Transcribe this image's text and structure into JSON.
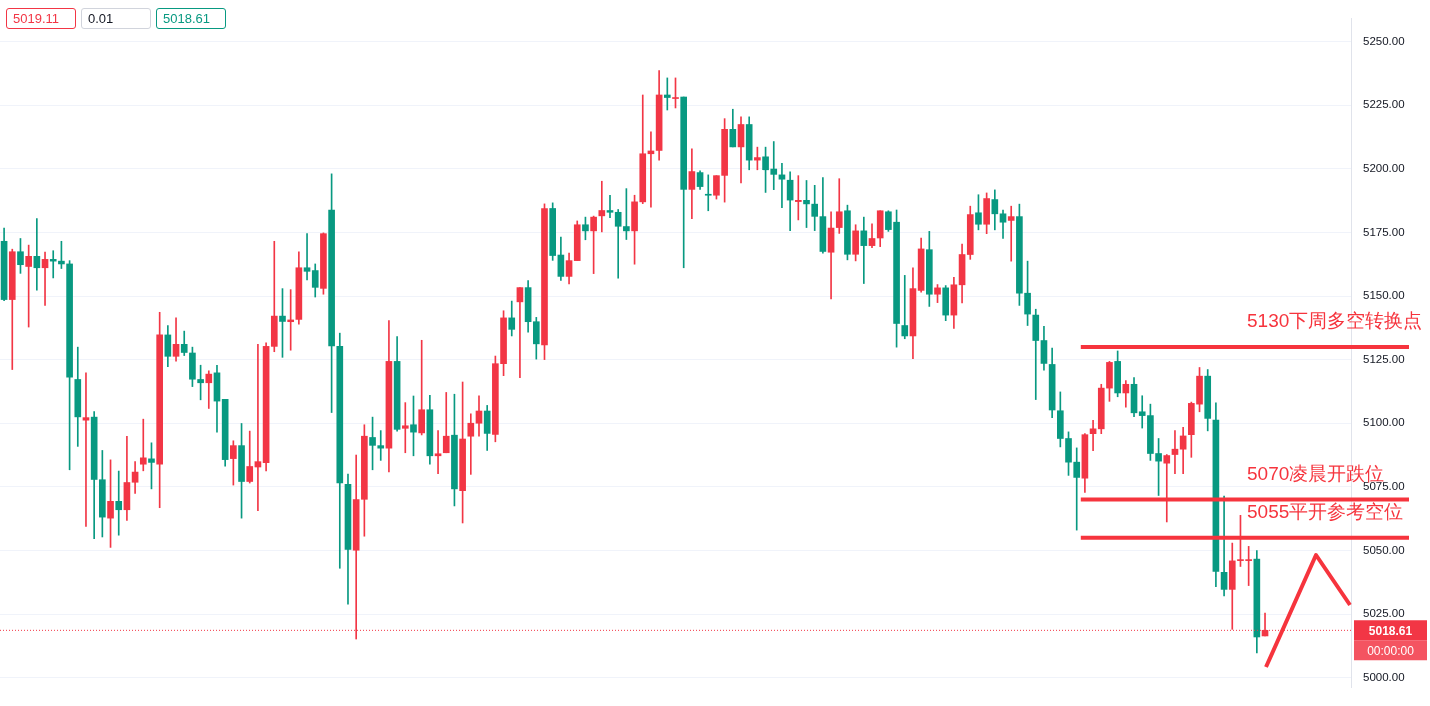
{
  "chart_data": {
    "type": "candlestick",
    "categories": [
      null,
      null,
      null,
      null,
      null,
      null,
      null,
      null,
      null,
      null,
      null,
      null,
      null,
      null,
      null,
      null,
      null,
      null,
      null,
      null,
      null,
      null,
      null,
      null,
      null,
      null,
      null,
      null,
      null,
      null,
      null,
      null,
      null,
      null,
      null,
      null,
      null,
      null,
      null,
      null,
      null,
      null,
      null,
      null,
      null,
      null,
      null,
      null,
      null,
      null,
      null,
      null,
      null,
      null,
      null,
      null,
      null,
      null,
      null,
      null,
      null,
      null,
      null,
      null,
      null,
      null,
      null,
      null,
      null,
      null,
      null,
      null,
      null,
      null,
      null,
      null,
      null,
      null,
      null,
      null,
      null,
      null,
      null,
      null,
      null,
      null,
      null,
      null,
      null,
      null,
      null,
      null,
      null,
      null,
      null,
      null,
      null,
      null,
      null,
      null,
      null,
      null,
      null,
      null,
      null,
      null,
      null,
      null,
      null,
      null,
      null,
      null,
      null,
      null,
      null,
      null,
      null,
      null,
      null,
      null,
      null,
      null,
      null,
      null,
      null,
      null,
      null,
      null,
      null,
      null,
      null,
      null,
      null,
      null,
      null,
      null,
      null,
      null,
      null,
      null,
      null,
      null,
      null,
      null,
      null,
      null,
      null,
      null,
      null,
      null,
      null,
      null,
      null,
      null,
      null,
      null,
      null,
      null,
      null,
      null,
      null,
      null,
      null,
      null,
      null
    ],
    "ohlc": [
      [
        5171.5,
        5176.7,
        5148.2,
        5148.6
      ],
      [
        5148.6,
        5168.4,
        5121.1,
        5167.4
      ],
      [
        5167.4,
        5172.6,
        5158.9,
        5162.3
      ],
      [
        5161.6,
        5170.0,
        5137.8,
        5165.6
      ],
      [
        5165.6,
        5180.4,
        5152.3,
        5161.1
      ],
      [
        5161.1,
        5167.3,
        5146.3,
        5164.4
      ],
      [
        5164.4,
        5167.8,
        5157.1,
        5163.7
      ],
      [
        5163.7,
        5171.5,
        5160.8,
        5162.6
      ],
      [
        5162.6,
        5163.9,
        5081.7,
        5118.1
      ],
      [
        5117.2,
        5129.9,
        5090.9,
        5102.5
      ],
      [
        5101.2,
        5119.8,
        5059.4,
        5102.2
      ],
      [
        5102.4,
        5104.6,
        5054.6,
        5077.9
      ],
      [
        5077.8,
        5089.3,
        5055.3,
        5063.1
      ],
      [
        5062.7,
        5085.6,
        5051.2,
        5069.3
      ],
      [
        5069.3,
        5081.2,
        5056.0,
        5066.0
      ],
      [
        5066.0,
        5094.9,
        5061.8,
        5076.7
      ],
      [
        5076.8,
        5084.9,
        5072.4,
        5080.8
      ],
      [
        5083.9,
        5101.6,
        5081.3,
        5086.4
      ],
      [
        5086.0,
        5092.3,
        5074.2,
        5084.6
      ],
      [
        5083.9,
        5143.6,
        5066.8,
        5134.7
      ],
      [
        5134.7,
        5138.4,
        5122.2,
        5126.3
      ],
      [
        5126.3,
        5141.4,
        5124.4,
        5131.0
      ],
      [
        5131.0,
        5136.2,
        5126.6,
        5127.8
      ],
      [
        5127.6,
        5129.9,
        5114.4,
        5117.3
      ],
      [
        5117.2,
        5122.8,
        5109.2,
        5115.9
      ],
      [
        5115.9,
        5120.6,
        5105.8,
        5119.3
      ],
      [
        5119.8,
        5122.8,
        5096.5,
        5108.7
      ],
      [
        5109.4,
        5109.4,
        5083.1,
        5085.7
      ],
      [
        5086.1,
        5093.1,
        5075.7,
        5091.2
      ],
      [
        5091.2,
        5099.9,
        5062.7,
        5077.1
      ],
      [
        5077.1,
        5096.9,
        5076.5,
        5083.0
      ],
      [
        5082.8,
        5131.0,
        5065.6,
        5084.9
      ],
      [
        5084.5,
        5131.6,
        5081.3,
        5130.2
      ],
      [
        5130.2,
        5171.5,
        5128.1,
        5142.1
      ],
      [
        5142.1,
        5152.9,
        5125.9,
        5140.0
      ],
      [
        5139.9,
        5152.5,
        5128.7,
        5140.6
      ],
      [
        5140.8,
        5167.4,
        5138.9,
        5161.1
      ],
      [
        5161.1,
        5174.5,
        5156.3,
        5159.7
      ],
      [
        5160.0,
        5162.6,
        5149.6,
        5153.4
      ],
      [
        5153.0,
        5174.8,
        5150.7,
        5174.5
      ],
      [
        5183.8,
        5198.0,
        5104.2,
        5130.4
      ],
      [
        5130.2,
        5135.4,
        5043.0,
        5076.5
      ],
      [
        5076.0,
        5080.0,
        5028.9,
        5050.4
      ],
      [
        5050.1,
        5087.5,
        5015.2,
        5070.0
      ],
      [
        5070.1,
        5099.4,
        5055.6,
        5094.9
      ],
      [
        5094.4,
        5102.4,
        5081.7,
        5091.3
      ],
      [
        5091.2,
        5097.1,
        5085.4,
        5090.2
      ],
      [
        5090.2,
        5140.3,
        5080.9,
        5124.3
      ],
      [
        5124.3,
        5134.1,
        5096.9,
        5097.6
      ],
      [
        5098.0,
        5108.1,
        5088.4,
        5099.0
      ],
      [
        5099.4,
        5110.7,
        5087.2,
        5096.5
      ],
      [
        5096.2,
        5132.6,
        5095.4,
        5105.3
      ],
      [
        5105.3,
        5111.0,
        5083.9,
        5087.2
      ],
      [
        5087.2,
        5097.1,
        5080.2,
        5088.0
      ],
      [
        5088.4,
        5112.1,
        5088.4,
        5094.9
      ],
      [
        5095.3,
        5111.4,
        5067.5,
        5074.2
      ],
      [
        5073.5,
        5116.2,
        5060.8,
        5093.8
      ],
      [
        5094.9,
        5103.7,
        5079.9,
        5100.0
      ],
      [
        5100.0,
        5110.8,
        5094.9,
        5104.8
      ],
      [
        5104.8,
        5107.0,
        5089.3,
        5096.0
      ],
      [
        5095.6,
        5126.4,
        5092.7,
        5123.4
      ],
      [
        5123.4,
        5144.2,
        5118.7,
        5141.4
      ],
      [
        5141.4,
        5148.0,
        5134.3,
        5136.9
      ],
      [
        5147.7,
        5153.3,
        5117.9,
        5153.3
      ],
      [
        5153.3,
        5156.1,
        5135.8,
        5139.9
      ],
      [
        5139.9,
        5141.6,
        5125.2,
        5131.2
      ],
      [
        5130.8,
        5186.2,
        5125.0,
        5184.4
      ],
      [
        5184.4,
        5186.6,
        5164.0,
        5165.9
      ],
      [
        5166.1,
        5173.2,
        5156.1,
        5157.7
      ],
      [
        5157.7,
        5166.9,
        5154.7,
        5163.9
      ],
      [
        5163.9,
        5179.5,
        5163.9,
        5178.0
      ],
      [
        5178.0,
        5181.0,
        5172.1,
        5175.6
      ],
      [
        5175.6,
        5181.4,
        5158.8,
        5181.0
      ],
      [
        5181.5,
        5195.1,
        5175.2,
        5183.6
      ],
      [
        5183.6,
        5189.6,
        5180.8,
        5182.9
      ],
      [
        5182.9,
        5184.0,
        5157.0,
        5177.4
      ],
      [
        5177.3,
        5192.2,
        5172.2,
        5175.6
      ],
      [
        5175.6,
        5189.6,
        5162.5,
        5187.0
      ],
      [
        5187.0,
        5229.0,
        5186.3,
        5205.9
      ],
      [
        5205.9,
        5214.5,
        5184.9,
        5207.0
      ],
      [
        5207.2,
        5238.6,
        5203.4,
        5229.0
      ],
      [
        5229.0,
        5235.7,
        5223.1,
        5228.0
      ],
      [
        5227.6,
        5235.7,
        5223.9,
        5228.0
      ],
      [
        5228.2,
        5228.2,
        5161.1,
        5191.9
      ],
      [
        5191.9,
        5207.8,
        5180.4,
        5198.9
      ],
      [
        5198.5,
        5199.2,
        5191.9,
        5193.0
      ],
      [
        5189.8,
        5197.6,
        5183.5,
        5189.6
      ],
      [
        5189.6,
        5197.3,
        5188.1,
        5197.3
      ],
      [
        5197.4,
        5219.7,
        5186.9,
        5215.5
      ],
      [
        5215.5,
        5223.4,
        5208.6,
        5208.6
      ],
      [
        5208.6,
        5220.4,
        5194.4,
        5217.4
      ],
      [
        5217.4,
        5220.4,
        5199.6,
        5203.4
      ],
      [
        5203.4,
        5208.5,
        5199.6,
        5204.4
      ],
      [
        5204.7,
        5208.5,
        5190.7,
        5199.6
      ],
      [
        5199.9,
        5210.7,
        5191.8,
        5197.8
      ],
      [
        5197.6,
        5202.1,
        5184.7,
        5195.9
      ],
      [
        5195.5,
        5198.8,
        5175.7,
        5187.7
      ],
      [
        5187.1,
        5197.3,
        5179.9,
        5187.6
      ],
      [
        5187.6,
        5195.4,
        5176.9,
        5186.2
      ],
      [
        5186.1,
        5193.5,
        5175.7,
        5181.3
      ],
      [
        5181.2,
        5196.5,
        5166.8,
        5167.5
      ],
      [
        5167.2,
        5183.1,
        5148.9,
        5176.7
      ],
      [
        5176.9,
        5196.1,
        5174.6,
        5183.1
      ],
      [
        5183.5,
        5185.7,
        5164.2,
        5166.4
      ],
      [
        5166.4,
        5178.0,
        5163.8,
        5175.6
      ],
      [
        5175.6,
        5181.0,
        5154.9,
        5169.8
      ],
      [
        5169.8,
        5178.4,
        5169.0,
        5172.6
      ],
      [
        5172.8,
        5183.5,
        5169.4,
        5183.5
      ],
      [
        5183.1,
        5183.5,
        5175.4,
        5176.1
      ],
      [
        5179.0,
        5183.8,
        5129.9,
        5139.2
      ],
      [
        5138.4,
        5158.1,
        5133.2,
        5134.3
      ],
      [
        5134.3,
        5161.1,
        5125.4,
        5152.9
      ],
      [
        5152.2,
        5172.8,
        5151.5,
        5168.5
      ],
      [
        5168.2,
        5175.4,
        5145.9,
        5150.7
      ],
      [
        5150.7,
        5154.5,
        5147.4,
        5153.2
      ],
      [
        5153.2,
        5154.1,
        5140.3,
        5142.5
      ],
      [
        5142.5,
        5157.3,
        5137.3,
        5154.4
      ],
      [
        5154.4,
        5170.4,
        5147.3,
        5166.3
      ],
      [
        5166.3,
        5185.3,
        5164.4,
        5182.0
      ],
      [
        5182.7,
        5189.8,
        5176.0,
        5178.2
      ],
      [
        5178.2,
        5190.5,
        5174.5,
        5188.3
      ],
      [
        5187.9,
        5191.7,
        5176.0,
        5182.3
      ],
      [
        5182.3,
        5183.8,
        5172.6,
        5179.0
      ],
      [
        5179.7,
        5185.3,
        5163.7,
        5181.2
      ],
      [
        5181.2,
        5186.1,
        5146.3,
        5151.1
      ],
      [
        5151.1,
        5163.7,
        5138.4,
        5142.9
      ],
      [
        5142.5,
        5144.8,
        5109.3,
        5132.5
      ],
      [
        5132.5,
        5138.1,
        5120.9,
        5123.5
      ],
      [
        5123.1,
        5129.5,
        5102.2,
        5105.2
      ],
      [
        5104.9,
        5112.3,
        5090.7,
        5094.0
      ],
      [
        5094.0,
        5096.6,
        5079.5,
        5084.7
      ],
      [
        5084.7,
        5090.3,
        5058.0,
        5078.7
      ],
      [
        5078.4,
        5095.9,
        5072.8,
        5095.5
      ],
      [
        5095.9,
        5101.1,
        5089.2,
        5097.8
      ],
      [
        5097.8,
        5115.3,
        5095.9,
        5113.8
      ],
      [
        5113.8,
        5124.3,
        5108.6,
        5123.9
      ],
      [
        5124.3,
        5128.4,
        5110.4,
        5111.9
      ],
      [
        5111.9,
        5116.8,
        5106.3,
        5115.3
      ],
      [
        5115.3,
        5117.9,
        5102.6,
        5104.1
      ],
      [
        5104.5,
        5110.8,
        5098.1,
        5103.0
      ],
      [
        5103.0,
        5107.5,
        5085.4,
        5088.1
      ],
      [
        5088.1,
        5094.0,
        5071.6,
        5085.1
      ],
      [
        5084.3,
        5087.7,
        5061.2,
        5087.3
      ],
      [
        5087.7,
        5097.1,
        5080.2,
        5089.8
      ],
      [
        5089.8,
        5098.4,
        5080.2,
        5095.0
      ],
      [
        5095.5,
        5108.3,
        5086.6,
        5107.8
      ],
      [
        5107.5,
        5121.9,
        5104.5,
        5118.5
      ],
      [
        5118.5,
        5121.1,
        5097.0,
        5101.9
      ],
      [
        5101.2,
        5108.0,
        5035.8,
        5041.8
      ],
      [
        5041.4,
        5071.4,
        5032.1,
        5034.7
      ],
      [
        5034.7,
        5052.9,
        5019.0,
        5045.9
      ],
      [
        5046.0,
        5063.8,
        5043.7,
        5046.4
      ],
      [
        5046.0,
        5051.6,
        5036.2,
        5046.4
      ],
      [
        5046.6,
        5050.0,
        5009.7,
        5016.0
      ],
      [
        5016.4,
        5025.4,
        5016.4,
        5018.61
      ],
      null,
      null,
      null,
      null,
      null,
      null,
      null,
      null,
      null,
      null
    ],
    "colors": [
      "#089981",
      "#f23645",
      "#089981",
      "#f23645",
      "#089981",
      "#f23645",
      "#089981",
      "#089981",
      "#089981",
      "#089981",
      "#f23645",
      "#089981",
      "#089981",
      "#f23645",
      "#089981",
      "#f23645",
      "#f23645",
      "#f23645",
      "#089981",
      "#f23645",
      "#089981",
      "#f23645",
      "#089981",
      "#089981",
      "#089981",
      "#f23645",
      "#089981",
      "#089981",
      "#f23645",
      "#089981",
      "#f23645",
      "#f23645",
      "#f23645",
      "#f23645",
      "#089981",
      "#f23645",
      "#f23645",
      "#089981",
      "#089981",
      "#f23645",
      "#089981",
      "#089981",
      "#089981",
      "#f23645",
      "#f23645",
      "#089981",
      "#089981",
      "#f23645",
      "#089981",
      "#f23645",
      "#089981",
      "#f23645",
      "#089981",
      "#f23645",
      "#f23645",
      "#089981",
      "#f23645",
      "#f23645",
      "#f23645",
      "#089981",
      "#f23645",
      "#f23645",
      "#089981",
      "#f23645",
      "#089981",
      "#089981",
      "#f23645",
      "#089981",
      "#089981",
      "#f23645",
      "#f23645",
      "#089981",
      "#f23645",
      "#f23645",
      "#089981",
      "#089981",
      "#089981",
      "#f23645",
      "#f23645",
      "#f23645",
      "#f23645",
      "#089981",
      "#f23645",
      "#089981",
      "#f23645",
      "#089981",
      "#089981",
      "#f23645",
      "#f23645",
      "#089981",
      "#f23645",
      "#089981",
      "#f23645",
      "#089981",
      "#089981",
      "#089981",
      "#089981",
      "#f23645",
      "#089981",
      "#089981",
      "#089981",
      "#f23645",
      "#f23645",
      "#089981",
      "#f23645",
      "#089981",
      "#f23645",
      "#f23645",
      "#089981",
      "#089981",
      "#089981",
      "#f23645",
      "#f23645",
      "#089981",
      "#f23645",
      "#089981",
      "#f23645",
      "#f23645",
      "#f23645",
      "#089981",
      "#f23645",
      "#089981",
      "#089981",
      "#f23645",
      "#089981",
      "#089981",
      "#089981",
      "#089981",
      "#089981",
      "#089981",
      "#089981",
      "#089981",
      "#f23645",
      "#f23645",
      "#f23645",
      "#f23645",
      "#089981",
      "#f23645",
      "#089981",
      "#089981",
      "#089981",
      "#089981",
      "#f23645",
      "#f23645",
      "#f23645",
      "#f23645",
      "#f23645",
      "#089981",
      "#089981",
      "#089981",
      "#f23645",
      "#f23645",
      "#f23645",
      "#089981",
      "#f23645",
      null,
      null,
      null,
      null,
      null,
      null,
      null,
      null,
      null,
      null
    ],
    "ylim": [
      4996.3,
      5258.9
    ],
    "yticks": [
      {
        "value": 5000,
        "label": "5000.00"
      },
      {
        "value": 5025,
        "label": "5025.00"
      },
      {
        "value": 5050,
        "label": "5050.00"
      },
      {
        "value": 5075,
        "label": "5075.00"
      },
      {
        "value": 5100,
        "label": "5100.00"
      },
      {
        "value": 5125,
        "label": "5125.00"
      },
      {
        "value": 5150,
        "label": "5150.00"
      },
      {
        "value": 5175,
        "label": "5175.00"
      },
      {
        "value": 5200,
        "label": "5200.00"
      },
      {
        "value": 5225,
        "label": "5225.00"
      },
      {
        "value": 5250,
        "label": "5250.00"
      }
    ],
    "grid": "y",
    "tick_labels": "y",
    "ref_lines": [
      {
        "axis": "y",
        "value": 5130,
        "label": "5130下周多空转换点",
        "color": "#f6343d",
        "line_style": "solid"
      },
      {
        "axis": "y",
        "value": 5070,
        "label": "5070凌晨开跌位",
        "color": "#f6343d",
        "line_style": "solid"
      },
      {
        "axis": "y",
        "value": 5055,
        "label": "5055平开参考空位",
        "color": "#f6343d",
        "line_style": "solid"
      },
      {
        "axis": "y",
        "value": 5018.61,
        "label": "5018.61",
        "color": "#f23645",
        "line_style": "dotted"
      }
    ],
    "annotations": [
      "5019.11",
      "0.01",
      "5018.61",
      "00:00:00"
    ]
  }
}
